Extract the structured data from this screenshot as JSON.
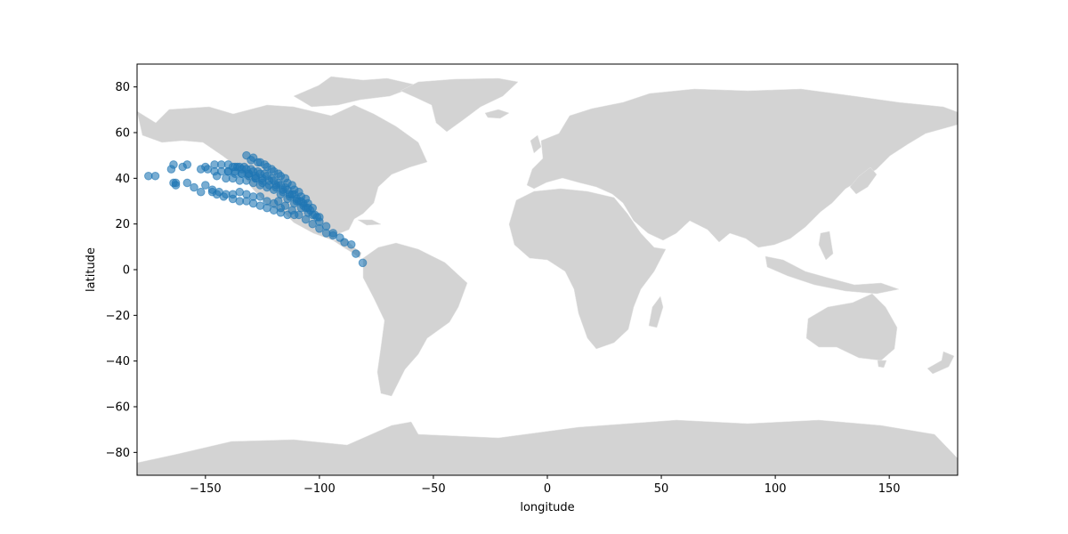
{
  "colors": {
    "background": "#ffffff",
    "land": "#d3d3d3",
    "points": "#1f77b4",
    "axis": "#000000"
  },
  "chart_data": {
    "type": "scatter",
    "xlabel": "longitude",
    "ylabel": "latitude",
    "xlim": [
      -180,
      180
    ],
    "ylim": [
      -90,
      90
    ],
    "xticks": [
      -150,
      -100,
      -50,
      0,
      50,
      100,
      150
    ],
    "yticks": [
      -80,
      -60,
      -40,
      -20,
      0,
      20,
      40,
      60,
      80
    ],
    "xtick_labels": [
      "−150",
      "−100",
      "−50",
      "0",
      "50",
      "100",
      "150"
    ],
    "ytick_labels": [
      "−80",
      "−60",
      "−40",
      "−20",
      "0",
      "20",
      "40",
      "60",
      "80"
    ],
    "grid": false,
    "background_map": "world land polygons",
    "marker_alpha": 0.6,
    "series": [
      {
        "x": [
          -175,
          -172,
          -165,
          -164,
          -160,
          -158,
          -150,
          -146,
          -143,
          -140,
          -137,
          -134,
          -131,
          -128,
          -125,
          -163,
          -158,
          -150,
          -147,
          -144,
          -141,
          -138,
          -135,
          -132,
          -129,
          -126,
          -123,
          -120,
          -117,
          -164,
          -163,
          -155,
          -152,
          -147,
          -145,
          -142,
          -138,
          -135,
          -132,
          -129,
          -126,
          -123,
          -120,
          -117,
          -114,
          -111,
          -152,
          -149,
          -146,
          -143,
          -140,
          -137,
          -134,
          -131,
          -128,
          -125,
          -122,
          -119,
          -116,
          -113,
          -110,
          -107,
          -145,
          -141,
          -138,
          -135,
          -132,
          -129,
          -126,
          -123,
          -120,
          -117,
          -114,
          -111,
          -108,
          -105,
          -140,
          -137,
          -134,
          -131,
          -128,
          -125,
          -122,
          -119,
          -116,
          -113,
          -110,
          -107,
          -104,
          -101,
          -136,
          -133,
          -130,
          -127,
          -124,
          -121,
          -118,
          -115,
          -112,
          -109,
          -106,
          -103,
          -100,
          -130,
          -127,
          -124,
          -121,
          -118,
          -115,
          -112,
          -109,
          -106,
          -103,
          -100,
          -97,
          -94,
          -118,
          -115,
          -112,
          -109,
          -106,
          -103,
          -100,
          -97,
          -94,
          -132,
          -129,
          -126,
          -123,
          -120,
          -117,
          -114,
          -111,
          -108,
          -105,
          -138,
          -135,
          -132,
          -129,
          -126,
          -123,
          -120,
          -117,
          -114,
          -111,
          -108,
          -105,
          -102,
          -91,
          -89,
          -86,
          -84,
          -81
        ],
        "y": [
          41,
          41,
          44,
          46,
          45,
          46,
          45,
          46,
          46,
          46,
          45,
          44,
          42,
          40,
          38,
          38,
          38,
          37,
          35,
          34,
          33,
          33,
          34,
          33,
          32,
          32,
          30,
          29,
          27,
          38,
          37,
          36,
          34,
          34,
          33,
          32,
          31,
          30,
          30,
          29,
          28,
          27,
          26,
          25,
          24,
          24,
          44,
          44,
          43,
          43,
          43,
          42,
          42,
          41,
          40,
          39,
          37,
          36,
          34,
          32,
          30,
          28,
          41,
          40,
          40,
          39,
          39,
          38,
          37,
          36,
          35,
          33,
          31,
          29,
          27,
          25,
          43,
          43,
          42,
          42,
          41,
          40,
          39,
          37,
          35,
          33,
          31,
          29,
          26,
          23,
          45,
          45,
          44,
          43,
          42,
          40,
          38,
          36,
          33,
          30,
          27,
          24,
          21,
          48,
          47,
          46,
          44,
          42,
          40,
          37,
          34,
          31,
          27,
          23,
          19,
          16,
          30,
          28,
          26,
          24,
          22,
          20,
          18,
          16,
          15,
          50,
          49,
          47,
          45,
          43,
          41,
          38,
          35,
          32,
          29,
          45,
          45,
          44,
          43,
          42,
          41,
          39,
          37,
          35,
          33,
          30,
          27,
          24,
          14,
          12,
          11,
          7,
          3
        ]
      }
    ]
  }
}
